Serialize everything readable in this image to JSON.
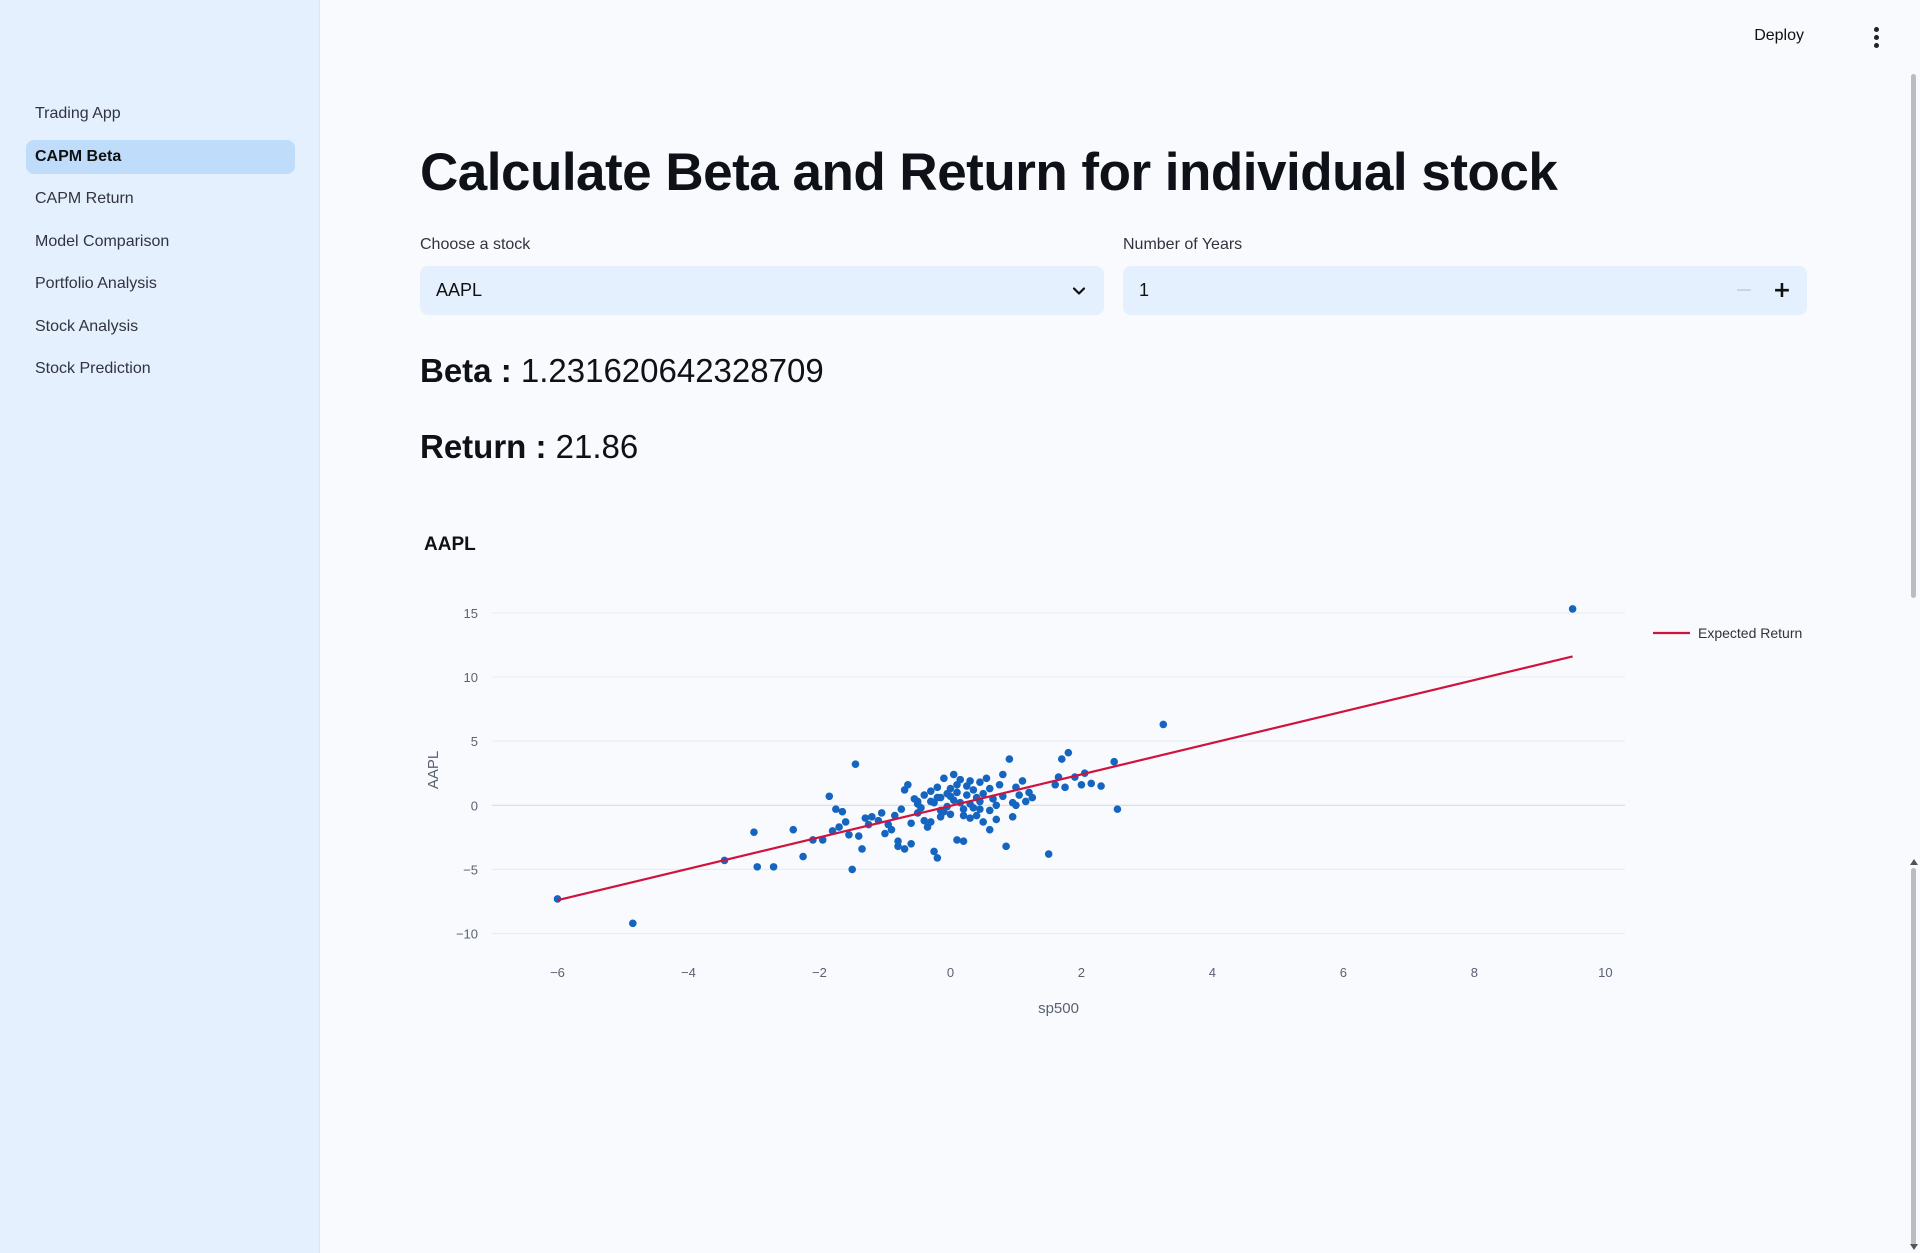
{
  "sidebar": {
    "items": [
      {
        "label": "Trading App",
        "active": false
      },
      {
        "label": "CAPM Beta",
        "active": true
      },
      {
        "label": "CAPM Return",
        "active": false
      },
      {
        "label": "Model Comparison",
        "active": false
      },
      {
        "label": "Portfolio Analysis",
        "active": false
      },
      {
        "label": "Stock Analysis",
        "active": false
      },
      {
        "label": "Stock Prediction",
        "active": false
      }
    ]
  },
  "toolbar": {
    "deploy_label": "Deploy",
    "menu_icon": "vertical-dots-icon"
  },
  "main": {
    "title": "Calculate Beta and Return for individual stock",
    "stock_select": {
      "label": "Choose a stock",
      "value": "AAPL",
      "icon": "chevron-down-icon"
    },
    "years_input": {
      "label": "Number of Years",
      "value": "1",
      "decrement": "−",
      "increment": "+"
    },
    "beta": {
      "label": "Beta : ",
      "value": "1.231620642328709"
    },
    "return": {
      "label": "Return : ",
      "value": "21.86"
    },
    "chart_title": "AAPL"
  },
  "colors": {
    "accent": "#bfdcfa",
    "sidebar_bg": "#e4f0fd",
    "point": "#1565c0",
    "line": "#d0123f"
  },
  "chart_data": {
    "type": "scatter",
    "title": "AAPL",
    "xlabel": "sp500",
    "ylabel": "AAPL",
    "xlim": [
      -7,
      10.3
    ],
    "ylim": [
      -10.5,
      16
    ],
    "xticks": [
      -6,
      -4,
      -2,
      0,
      2,
      4,
      6,
      8,
      10
    ],
    "yticks": [
      -10,
      -5,
      0,
      5,
      10,
      15
    ],
    "grid": true,
    "legend_position": "top-right",
    "series": [
      {
        "name": "Expected Return",
        "type": "line",
        "color": "#d0123f",
        "x": [
          -6.0,
          9.5
        ],
        "y": [
          -7.4,
          11.6
        ]
      },
      {
        "type": "scatter",
        "color": "#1565c0",
        "x": [
          -6.0,
          -4.85,
          -3.45,
          -3.0,
          -2.95,
          -2.7,
          -2.4,
          -2.25,
          -2.1,
          -1.95,
          -1.85,
          -1.8,
          -1.75,
          -1.7,
          -1.65,
          -1.6,
          -1.55,
          -1.5,
          -1.45,
          -1.4,
          -1.35,
          -1.25,
          -1.2,
          -1.1,
          -1.05,
          -1.0,
          -0.95,
          -0.9,
          -0.85,
          -0.8,
          -0.8,
          -0.75,
          -0.7,
          -0.7,
          -0.65,
          -0.6,
          -0.55,
          -0.5,
          -0.5,
          -0.45,
          -0.4,
          -0.4,
          -0.35,
          -0.3,
          -0.3,
          -0.25,
          -0.25,
          -0.2,
          -0.2,
          -0.15,
          -0.15,
          -0.1,
          -0.1,
          -0.05,
          -0.05,
          0.0,
          0.0,
          0.05,
          0.05,
          0.1,
          0.1,
          0.15,
          0.15,
          0.2,
          0.2,
          0.25,
          0.25,
          0.3,
          0.3,
          0.35,
          0.35,
          0.4,
          0.4,
          0.45,
          0.45,
          0.5,
          0.5,
          0.55,
          0.6,
          0.6,
          0.65,
          0.7,
          0.7,
          0.75,
          0.8,
          0.85,
          0.9,
          0.95,
          1.0,
          1.05,
          1.1,
          1.15,
          1.2,
          1.25,
          1.5,
          1.6,
          1.65,
          1.7,
          1.75,
          1.8,
          1.9,
          2.0,
          2.05,
          2.15,
          2.3,
          2.5,
          2.55,
          3.25,
          9.5,
          -0.3,
          -0.15,
          0.0,
          0.1,
          0.3,
          -0.5,
          -0.6,
          0.45,
          0.8,
          1.0,
          -1.3,
          0.2,
          -0.2,
          0.6,
          0.95
        ],
        "y": [
          -7.3,
          -9.2,
          -4.3,
          -2.1,
          -4.8,
          -4.8,
          -1.9,
          -4.0,
          -2.7,
          -2.7,
          0.7,
          -2.0,
          -0.3,
          -1.7,
          -0.5,
          -1.3,
          -2.3,
          -5.0,
          3.2,
          -2.4,
          -3.4,
          -1.5,
          -0.9,
          -1.2,
          -0.6,
          -2.2,
          -1.5,
          -1.9,
          -0.8,
          -2.8,
          -3.2,
          -0.3,
          1.2,
          -3.4,
          1.6,
          -3.0,
          0.5,
          -0.6,
          0.3,
          -0.2,
          -1.2,
          0.8,
          -1.7,
          -1.3,
          1.1,
          -3.6,
          0.2,
          -4.1,
          1.4,
          -0.9,
          0.6,
          2.1,
          -0.5,
          0.9,
          -0.1,
          1.3,
          -0.7,
          0.4,
          2.4,
          -2.7,
          1.0,
          0.2,
          2.0,
          -0.3,
          -2.8,
          1.5,
          0.8,
          0.1,
          -1.0,
          1.2,
          -0.2,
          0.6,
          -0.8,
          1.8,
          0.3,
          -1.3,
          0.9,
          2.1,
          -0.4,
          1.3,
          0.5,
          0.0,
          -1.1,
          1.6,
          0.7,
          -3.2,
          3.6,
          0.2,
          1.4,
          0.8,
          1.9,
          0.3,
          1.0,
          0.6,
          -3.8,
          1.6,
          2.2,
          3.6,
          1.4,
          4.1,
          2.2,
          1.6,
          2.5,
          1.7,
          1.5,
          3.4,
          -0.3,
          6.3,
          15.3,
          0.3,
          -0.4,
          0.7,
          1.6,
          1.9,
          0.1,
          -1.4,
          -0.3,
          2.4,
          0.0,
          -1.0,
          -0.8,
          0.6,
          -1.9,
          -0.9
        ]
      }
    ]
  }
}
